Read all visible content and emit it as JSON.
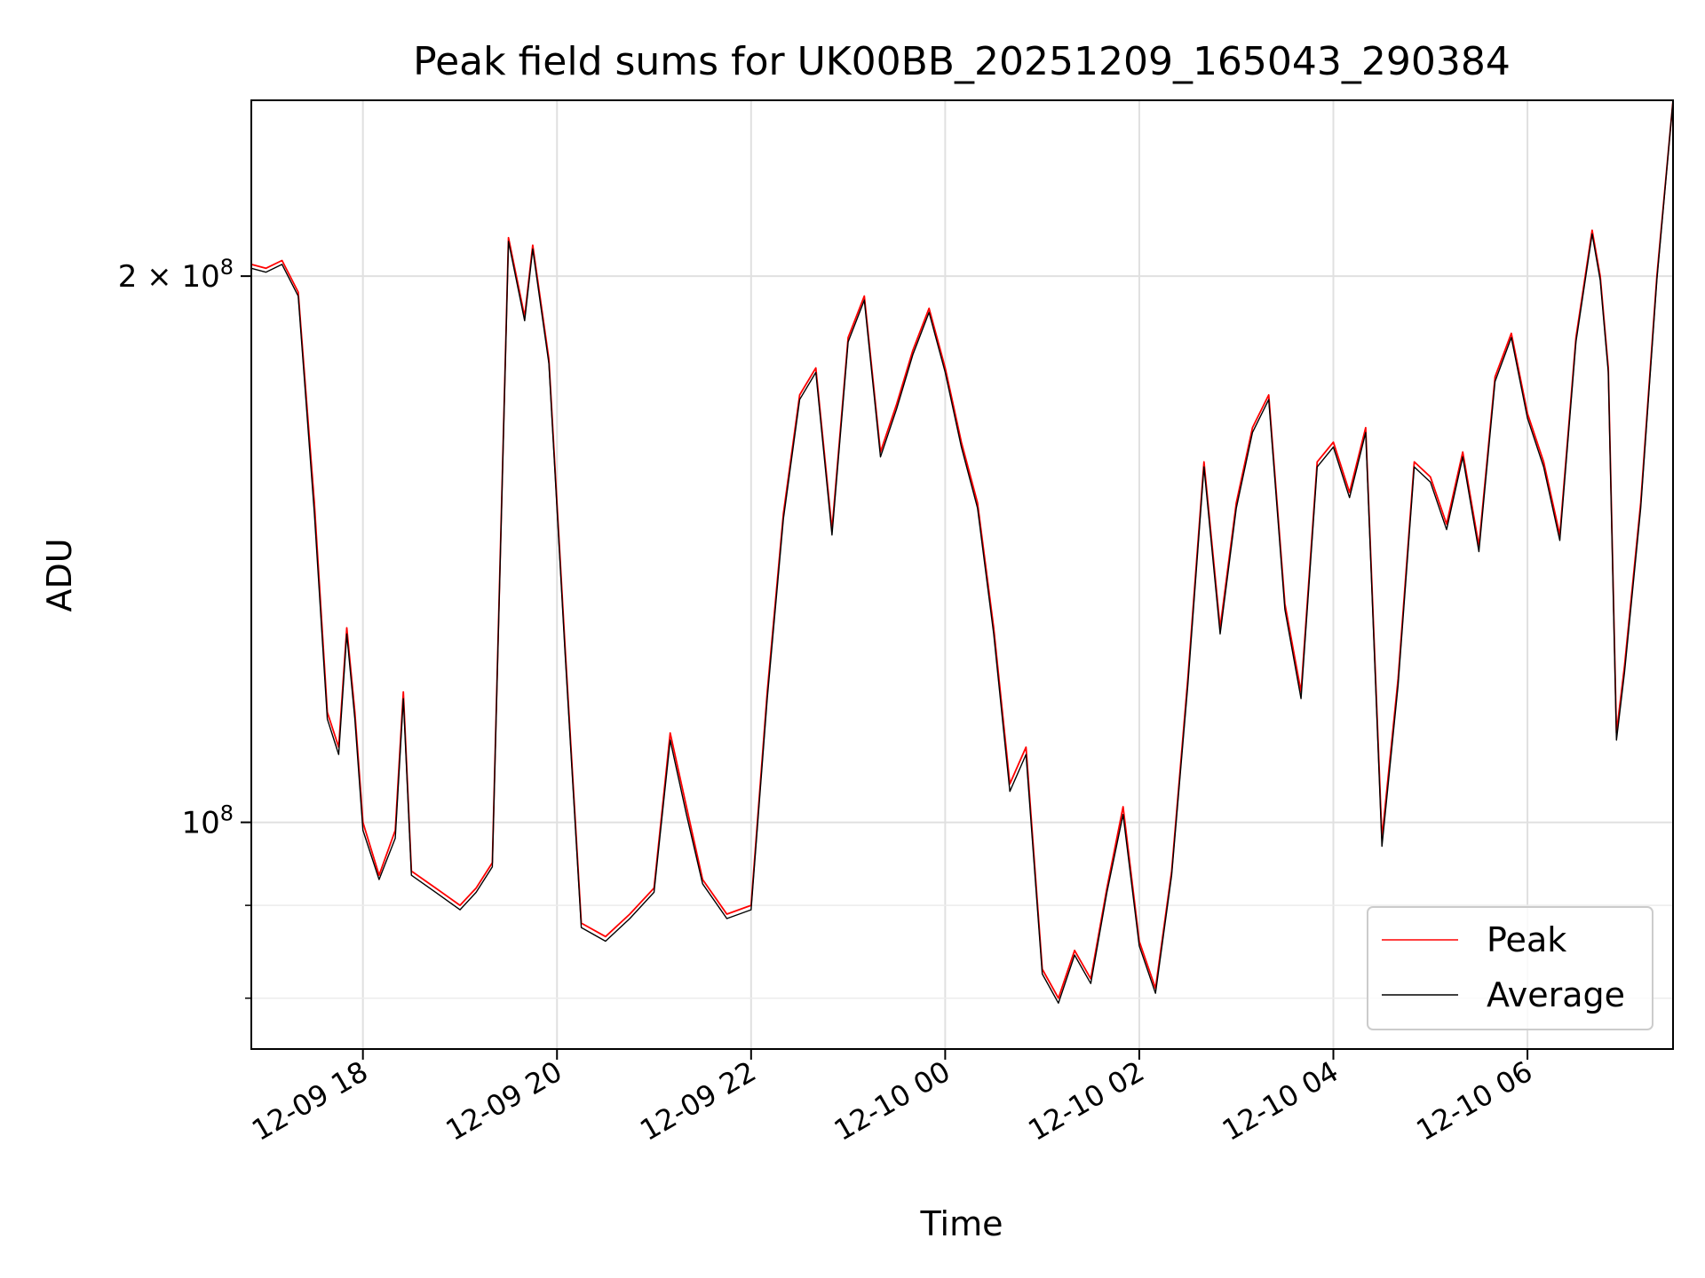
{
  "chart_data": {
    "type": "line",
    "title": "Peak field sums for UK00BB_20251209_165043_290384",
    "xlabel": "Time",
    "ylabel": "ADU",
    "y_scale": "log",
    "ylim": [
      75000000,
      250000000
    ],
    "xlim": [
      "2025-12-09 16:51",
      "2025-12-10 07:30"
    ],
    "grid": true,
    "legend_position": "lower-right",
    "x_ticks": [
      {
        "value": "2025-12-09 18:00",
        "label": "12-09 18"
      },
      {
        "value": "2025-12-09 20:00",
        "label": "12-09 20"
      },
      {
        "value": "2025-12-09 22:00",
        "label": "12-09 22"
      },
      {
        "value": "2025-12-10 00:00",
        "label": "12-10 00"
      },
      {
        "value": "2025-12-10 02:00",
        "label": "12-10 02"
      },
      {
        "value": "2025-12-10 04:00",
        "label": "12-10 04"
      },
      {
        "value": "2025-12-10 06:00",
        "label": "12-10 06"
      }
    ],
    "y_major_ticks": [
      {
        "value": 100000000,
        "base": "10",
        "exp": "8"
      },
      {
        "value": 200000000,
        "base": "2 × 10",
        "exp": "8"
      }
    ],
    "y_minor_ticks": [
      80000000,
      90000000
    ],
    "series": [
      {
        "name": "Peak",
        "color": "#ff0000",
        "points": [
          [
            "2025-12-09 16:51",
            203000000
          ],
          [
            "2025-12-09 17:00",
            202000000
          ],
          [
            "2025-12-09 17:10",
            204000000
          ],
          [
            "2025-12-09 17:20",
            196000000
          ],
          [
            "2025-12-09 17:30",
            150000000
          ],
          [
            "2025-12-09 17:38",
            115000000
          ],
          [
            "2025-12-09 17:45",
            110000000
          ],
          [
            "2025-12-09 17:50",
            128000000
          ],
          [
            "2025-12-09 17:55",
            115000000
          ],
          [
            "2025-12-09 18:00",
            100000000
          ],
          [
            "2025-12-09 18:10",
            93500000
          ],
          [
            "2025-12-09 18:20",
            99000000
          ],
          [
            "2025-12-09 18:25",
            118000000
          ],
          [
            "2025-12-09 18:30",
            94000000
          ],
          [
            "2025-12-09 18:45",
            92000000
          ],
          [
            "2025-12-09 19:00",
            90000000
          ],
          [
            "2025-12-09 19:10",
            92000000
          ],
          [
            "2025-12-09 19:20",
            95000000
          ],
          [
            "2025-12-09 19:30",
            210000000
          ],
          [
            "2025-12-09 19:40",
            190000000
          ],
          [
            "2025-12-09 19:45",
            208000000
          ],
          [
            "2025-12-09 19:55",
            180000000
          ],
          [
            "2025-12-09 20:00",
            150000000
          ],
          [
            "2025-12-09 20:05",
            125000000
          ],
          [
            "2025-12-09 20:15",
            88000000
          ],
          [
            "2025-12-09 20:30",
            86500000
          ],
          [
            "2025-12-09 20:45",
            89000000
          ],
          [
            "2025-12-09 21:00",
            92000000
          ],
          [
            "2025-12-09 21:10",
            112000000
          ],
          [
            "2025-12-09 21:20",
            102000000
          ],
          [
            "2025-12-09 21:30",
            93000000
          ],
          [
            "2025-12-09 21:45",
            89000000
          ],
          [
            "2025-12-09 22:00",
            90000000
          ],
          [
            "2025-12-09 22:10",
            118000000
          ],
          [
            "2025-12-09 22:20",
            148000000
          ],
          [
            "2025-12-09 22:30",
            172000000
          ],
          [
            "2025-12-09 22:40",
            178000000
          ],
          [
            "2025-12-09 22:50",
            145000000
          ],
          [
            "2025-12-09 23:00",
            185000000
          ],
          [
            "2025-12-09 23:10",
            195000000
          ],
          [
            "2025-12-09 23:20",
            160000000
          ],
          [
            "2025-12-09 23:30",
            170000000
          ],
          [
            "2025-12-09 23:40",
            182000000
          ],
          [
            "2025-12-09 23:50",
            192000000
          ],
          [
            "2025-12-10 00:00",
            178000000
          ],
          [
            "2025-12-10 00:10",
            162000000
          ],
          [
            "2025-12-10 00:20",
            150000000
          ],
          [
            "2025-12-10 00:30",
            128000000
          ],
          [
            "2025-12-10 00:40",
            105000000
          ],
          [
            "2025-12-10 00:50",
            110000000
          ],
          [
            "2025-12-10 01:00",
            83000000
          ],
          [
            "2025-12-10 01:10",
            80000000
          ],
          [
            "2025-12-10 01:20",
            85000000
          ],
          [
            "2025-12-10 01:30",
            82000000
          ],
          [
            "2025-12-10 01:40",
            92000000
          ],
          [
            "2025-12-10 01:50",
            102000000
          ],
          [
            "2025-12-10 02:00",
            86000000
          ],
          [
            "2025-12-10 02:10",
            81000000
          ],
          [
            "2025-12-10 02:20",
            94000000
          ],
          [
            "2025-12-10 02:30",
            120000000
          ],
          [
            "2025-12-10 02:40",
            158000000
          ],
          [
            "2025-12-10 02:50",
            128000000
          ],
          [
            "2025-12-10 03:00",
            150000000
          ],
          [
            "2025-12-10 03:10",
            165000000
          ],
          [
            "2025-12-10 03:20",
            172000000
          ],
          [
            "2025-12-10 03:30",
            132000000
          ],
          [
            "2025-12-10 03:40",
            118000000
          ],
          [
            "2025-12-10 03:50",
            158000000
          ],
          [
            "2025-12-10 04:00",
            162000000
          ],
          [
            "2025-12-10 04:10",
            152000000
          ],
          [
            "2025-12-10 04:20",
            165000000
          ],
          [
            "2025-12-10 04:30",
            98000000
          ],
          [
            "2025-12-10 04:40",
            120000000
          ],
          [
            "2025-12-10 04:50",
            158000000
          ],
          [
            "2025-12-10 05:00",
            155000000
          ],
          [
            "2025-12-10 05:10",
            146000000
          ],
          [
            "2025-12-10 05:20",
            160000000
          ],
          [
            "2025-12-10 05:30",
            142000000
          ],
          [
            "2025-12-10 05:40",
            176000000
          ],
          [
            "2025-12-10 05:50",
            186000000
          ],
          [
            "2025-12-10 06:00",
            168000000
          ],
          [
            "2025-12-10 06:10",
            158000000
          ],
          [
            "2025-12-10 06:20",
            144000000
          ],
          [
            "2025-12-10 06:30",
            185000000
          ],
          [
            "2025-12-10 06:40",
            212000000
          ],
          [
            "2025-12-10 06:45",
            200000000
          ],
          [
            "2025-12-10 06:50",
            178000000
          ],
          [
            "2025-12-10 06:55",
            112000000
          ],
          [
            "2025-12-10 07:00",
            122000000
          ],
          [
            "2025-12-10 07:10",
            150000000
          ],
          [
            "2025-12-10 07:20",
            200000000
          ],
          [
            "2025-12-10 07:30",
            250000000
          ]
        ]
      },
      {
        "name": "Average",
        "color": "#000000",
        "points": [
          [
            "2025-12-09 16:51",
            202000000
          ],
          [
            "2025-12-09 17:00",
            201000000
          ],
          [
            "2025-12-09 17:10",
            203000000
          ],
          [
            "2025-12-09 17:20",
            195000000
          ],
          [
            "2025-12-09 17:30",
            148000000
          ],
          [
            "2025-12-09 17:38",
            114000000
          ],
          [
            "2025-12-09 17:45",
            109000000
          ],
          [
            "2025-12-09 17:50",
            127000000
          ],
          [
            "2025-12-09 17:55",
            114000000
          ],
          [
            "2025-12-09 18:00",
            99000000
          ],
          [
            "2025-12-09 18:10",
            93000000
          ],
          [
            "2025-12-09 18:20",
            98000000
          ],
          [
            "2025-12-09 18:25",
            117000000
          ],
          [
            "2025-12-09 18:30",
            93500000
          ],
          [
            "2025-12-09 18:45",
            91500000
          ],
          [
            "2025-12-09 19:00",
            89500000
          ],
          [
            "2025-12-09 19:10",
            91500000
          ],
          [
            "2025-12-09 19:20",
            94500000
          ],
          [
            "2025-12-09 19:30",
            209000000
          ],
          [
            "2025-12-09 19:40",
            189000000
          ],
          [
            "2025-12-09 19:45",
            207000000
          ],
          [
            "2025-12-09 19:55",
            179000000
          ],
          [
            "2025-12-09 20:00",
            149000000
          ],
          [
            "2025-12-09 20:05",
            124000000
          ],
          [
            "2025-12-09 20:15",
            87500000
          ],
          [
            "2025-12-09 20:30",
            86000000
          ],
          [
            "2025-12-09 20:45",
            88500000
          ],
          [
            "2025-12-09 21:00",
            91500000
          ],
          [
            "2025-12-09 21:10",
            111000000
          ],
          [
            "2025-12-09 21:20",
            101000000
          ],
          [
            "2025-12-09 21:30",
            92500000
          ],
          [
            "2025-12-09 21:45",
            88500000
          ],
          [
            "2025-12-09 22:00",
            89500000
          ],
          [
            "2025-12-09 22:10",
            117000000
          ],
          [
            "2025-12-09 22:20",
            147000000
          ],
          [
            "2025-12-09 22:30",
            171000000
          ],
          [
            "2025-12-09 22:40",
            177000000
          ],
          [
            "2025-12-09 22:50",
            144000000
          ],
          [
            "2025-12-09 23:00",
            184000000
          ],
          [
            "2025-12-09 23:10",
            194000000
          ],
          [
            "2025-12-09 23:20",
            159000000
          ],
          [
            "2025-12-09 23:30",
            169000000
          ],
          [
            "2025-12-09 23:40",
            181000000
          ],
          [
            "2025-12-09 23:50",
            191000000
          ],
          [
            "2025-12-10 00:00",
            177000000
          ],
          [
            "2025-12-10 00:10",
            161000000
          ],
          [
            "2025-12-10 00:20",
            149000000
          ],
          [
            "2025-12-10 00:30",
            127000000
          ],
          [
            "2025-12-10 00:40",
            104000000
          ],
          [
            "2025-12-10 00:50",
            109000000
          ],
          [
            "2025-12-10 01:00",
            82500000
          ],
          [
            "2025-12-10 01:10",
            79500000
          ],
          [
            "2025-12-10 01:20",
            84500000
          ],
          [
            "2025-12-10 01:30",
            81500000
          ],
          [
            "2025-12-10 01:40",
            91500000
          ],
          [
            "2025-12-10 01:50",
            101000000
          ],
          [
            "2025-12-10 02:00",
            85500000
          ],
          [
            "2025-12-10 02:10",
            80500000
          ],
          [
            "2025-12-10 02:20",
            93500000
          ],
          [
            "2025-12-10 02:30",
            119000000
          ],
          [
            "2025-12-10 02:40",
            157000000
          ],
          [
            "2025-12-10 02:50",
            127000000
          ],
          [
            "2025-12-10 03:00",
            149000000
          ],
          [
            "2025-12-10 03:10",
            164000000
          ],
          [
            "2025-12-10 03:20",
            171000000
          ],
          [
            "2025-12-10 03:30",
            131000000
          ],
          [
            "2025-12-10 03:40",
            117000000
          ],
          [
            "2025-12-10 03:50",
            157000000
          ],
          [
            "2025-12-10 04:00",
            161000000
          ],
          [
            "2025-12-10 04:10",
            151000000
          ],
          [
            "2025-12-10 04:20",
            164000000
          ],
          [
            "2025-12-10 04:30",
            97000000
          ],
          [
            "2025-12-10 04:40",
            119000000
          ],
          [
            "2025-12-10 04:50",
            157000000
          ],
          [
            "2025-12-10 05:00",
            154000000
          ],
          [
            "2025-12-10 05:10",
            145000000
          ],
          [
            "2025-12-10 05:20",
            159000000
          ],
          [
            "2025-12-10 05:30",
            141000000
          ],
          [
            "2025-12-10 05:40",
            175000000
          ],
          [
            "2025-12-10 05:50",
            185000000
          ],
          [
            "2025-12-10 06:00",
            167000000
          ],
          [
            "2025-12-10 06:10",
            157000000
          ],
          [
            "2025-12-10 06:20",
            143000000
          ],
          [
            "2025-12-10 06:30",
            184000000
          ],
          [
            "2025-12-10 06:40",
            211000000
          ],
          [
            "2025-12-10 06:45",
            199000000
          ],
          [
            "2025-12-10 06:50",
            177000000
          ],
          [
            "2025-12-10 06:55",
            111000000
          ],
          [
            "2025-12-10 07:00",
            121000000
          ],
          [
            "2025-12-10 07:10",
            149000000
          ],
          [
            "2025-12-10 07:20",
            199000000
          ],
          [
            "2025-12-10 07:30",
            250000000
          ]
        ]
      }
    ]
  }
}
